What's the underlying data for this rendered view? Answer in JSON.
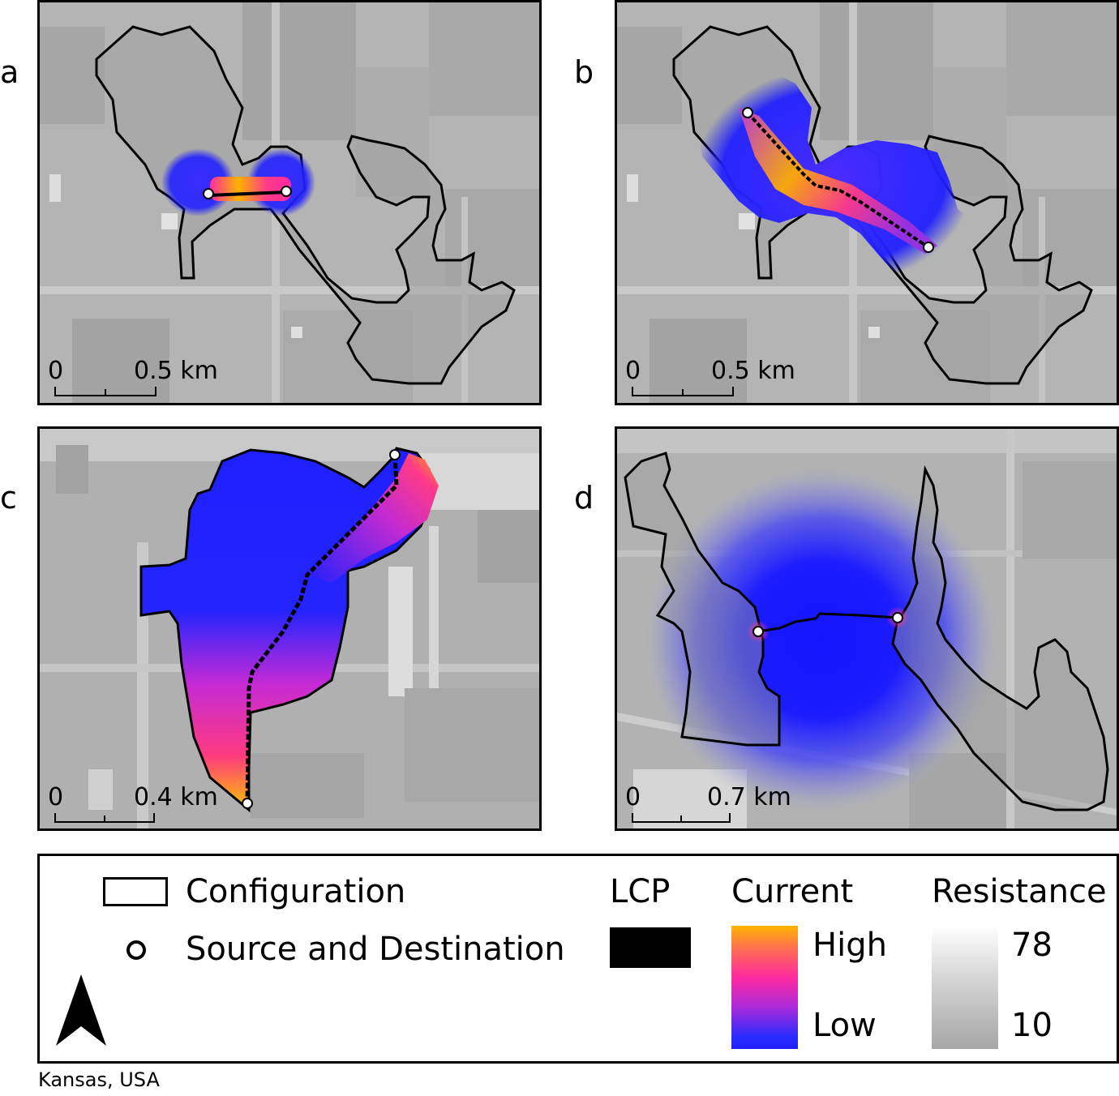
{
  "panels": [
    {
      "letter": "a",
      "scale": {
        "zero": "0",
        "max": "0.5",
        "unit": "km"
      }
    },
    {
      "letter": "b",
      "scale": {
        "zero": "0",
        "max": "0.5",
        "unit": "km"
      }
    },
    {
      "letter": "c",
      "scale": {
        "zero": "0",
        "max": "0.4",
        "unit": "km"
      }
    },
    {
      "letter": "d",
      "scale": {
        "zero": "0",
        "max": "0.7",
        "unit": "km"
      }
    }
  ],
  "legend": {
    "configuration_label": "Configuration",
    "source_dest_label": "Source and Destination",
    "lcp_title": "LCP",
    "current_title": "Current",
    "current_high": "High",
    "current_low": "Low",
    "resistance_title": "Resistance",
    "resistance_max": "78",
    "resistance_min": "10"
  },
  "colors": {
    "current_low": "#1f1fff",
    "current_mid": "#ff1fa0",
    "current_high": "#ffb300",
    "resistance_high": "#ffffff",
    "resistance_low": "#9a9a9a",
    "lcp": "#000000"
  },
  "icons": [
    "north-arrow-icon",
    "source-destination-icon"
  ],
  "caption": "Kansas, USA"
}
